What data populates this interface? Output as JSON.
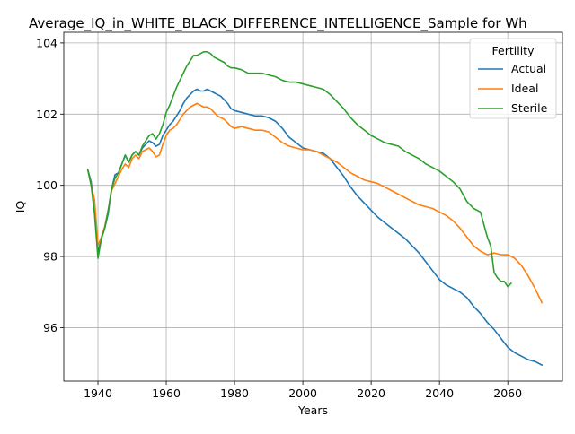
{
  "chart_data": {
    "type": "line",
    "title": "Average_IQ_in_WHITE_BLACK_DIFFERENCE_INTELLIGENCE_Sample for Wh",
    "xlabel": "Years",
    "ylabel": "IQ",
    "xlim": [
      1930,
      2076
    ],
    "ylim": [
      94.5,
      104.3
    ],
    "xticks": [
      1940,
      1960,
      1980,
      2000,
      2020,
      2040,
      2060
    ],
    "yticks": [
      96,
      98,
      100,
      102,
      104
    ],
    "grid": true,
    "legend": {
      "title": "Fertility",
      "placement": "top-right"
    },
    "series": [
      {
        "name": "Actual",
        "color": "#1f77b4",
        "points": [
          [
            1937,
            100.45
          ],
          [
            1938,
            100.1
          ],
          [
            1939,
            99.4
          ],
          [
            1940,
            98.1
          ],
          [
            1941,
            98.5
          ],
          [
            1942,
            98.8
          ],
          [
            1943,
            99.2
          ],
          [
            1944,
            99.9
          ],
          [
            1945,
            100.3
          ],
          [
            1946,
            100.35
          ],
          [
            1947,
            100.6
          ],
          [
            1948,
            100.85
          ],
          [
            1949,
            100.65
          ],
          [
            1950,
            100.85
          ],
          [
            1951,
            100.95
          ],
          [
            1952,
            100.85
          ],
          [
            1953,
            101.05
          ],
          [
            1954,
            101.15
          ],
          [
            1955,
            101.25
          ],
          [
            1956,
            101.2
          ],
          [
            1957,
            101.1
          ],
          [
            1958,
            101.15
          ],
          [
            1959,
            101.4
          ],
          [
            1960,
            101.55
          ],
          [
            1961,
            101.7
          ],
          [
            1962,
            101.8
          ],
          [
            1963,
            101.95
          ],
          [
            1964,
            102.1
          ],
          [
            1965,
            102.3
          ],
          [
            1966,
            102.45
          ],
          [
            1967,
            102.55
          ],
          [
            1968,
            102.65
          ],
          [
            1969,
            102.7
          ],
          [
            1970,
            102.65
          ],
          [
            1971,
            102.65
          ],
          [
            1972,
            102.7
          ],
          [
            1973,
            102.65
          ],
          [
            1974,
            102.6
          ],
          [
            1975,
            102.55
          ],
          [
            1976,
            102.5
          ],
          [
            1977,
            102.4
          ],
          [
            1978,
            102.3
          ],
          [
            1979,
            102.15
          ],
          [
            1980,
            102.1
          ],
          [
            1982,
            102.05
          ],
          [
            1984,
            102.0
          ],
          [
            1986,
            101.95
          ],
          [
            1988,
            101.95
          ],
          [
            1990,
            101.9
          ],
          [
            1992,
            101.8
          ],
          [
            1994,
            101.6
          ],
          [
            1996,
            101.35
          ],
          [
            1998,
            101.2
          ],
          [
            2000,
            101.05
          ],
          [
            2002,
            101.0
          ],
          [
            2004,
            100.95
          ],
          [
            2006,
            100.9
          ],
          [
            2008,
            100.75
          ],
          [
            2010,
            100.5
          ],
          [
            2012,
            100.25
          ],
          [
            2014,
            99.95
          ],
          [
            2016,
            99.7
          ],
          [
            2018,
            99.5
          ],
          [
            2020,
            99.3
          ],
          [
            2022,
            99.1
          ],
          [
            2024,
            98.95
          ],
          [
            2026,
            98.8
          ],
          [
            2028,
            98.65
          ],
          [
            2030,
            98.5
          ],
          [
            2032,
            98.3
          ],
          [
            2034,
            98.1
          ],
          [
            2036,
            97.85
          ],
          [
            2038,
            97.6
          ],
          [
            2040,
            97.35
          ],
          [
            2042,
            97.2
          ],
          [
            2044,
            97.1
          ],
          [
            2046,
            97.0
          ],
          [
            2048,
            96.85
          ],
          [
            2050,
            96.6
          ],
          [
            2052,
            96.4
          ],
          [
            2054,
            96.15
          ],
          [
            2056,
            95.95
          ],
          [
            2058,
            95.7
          ],
          [
            2060,
            95.45
          ],
          [
            2062,
            95.3
          ],
          [
            2064,
            95.2
          ],
          [
            2066,
            95.1
          ],
          [
            2068,
            95.05
          ],
          [
            2070,
            94.95
          ]
        ]
      },
      {
        "name": "Ideal",
        "color": "#ff7f0e",
        "points": [
          [
            1937,
            100.45
          ],
          [
            1938,
            100.0
          ],
          [
            1939,
            99.6
          ],
          [
            1940,
            98.3
          ],
          [
            1941,
            98.55
          ],
          [
            1942,
            98.85
          ],
          [
            1943,
            99.3
          ],
          [
            1944,
            99.85
          ],
          [
            1945,
            100.05
          ],
          [
            1946,
            100.25
          ],
          [
            1947,
            100.45
          ],
          [
            1948,
            100.6
          ],
          [
            1949,
            100.5
          ],
          [
            1950,
            100.75
          ],
          [
            1951,
            100.85
          ],
          [
            1952,
            100.75
          ],
          [
            1953,
            100.95
          ],
          [
            1954,
            101.0
          ],
          [
            1955,
            101.05
          ],
          [
            1956,
            100.95
          ],
          [
            1957,
            100.8
          ],
          [
            1958,
            100.85
          ],
          [
            1959,
            101.15
          ],
          [
            1960,
            101.4
          ],
          [
            1961,
            101.55
          ],
          [
            1962,
            101.6
          ],
          [
            1963,
            101.7
          ],
          [
            1964,
            101.85
          ],
          [
            1965,
            102.0
          ],
          [
            1966,
            102.1
          ],
          [
            1967,
            102.2
          ],
          [
            1968,
            102.25
          ],
          [
            1969,
            102.3
          ],
          [
            1970,
            102.25
          ],
          [
            1971,
            102.2
          ],
          [
            1972,
            102.2
          ],
          [
            1973,
            102.15
          ],
          [
            1974,
            102.05
          ],
          [
            1975,
            101.95
          ],
          [
            1976,
            101.9
          ],
          [
            1977,
            101.85
          ],
          [
            1978,
            101.75
          ],
          [
            1979,
            101.65
          ],
          [
            1980,
            101.6
          ],
          [
            1982,
            101.65
          ],
          [
            1984,
            101.6
          ],
          [
            1986,
            101.55
          ],
          [
            1988,
            101.55
          ],
          [
            1990,
            101.5
          ],
          [
            1992,
            101.35
          ],
          [
            1994,
            101.2
          ],
          [
            1996,
            101.1
          ],
          [
            1998,
            101.05
          ],
          [
            2000,
            101.0
          ],
          [
            2002,
            101.0
          ],
          [
            2004,
            100.95
          ],
          [
            2006,
            100.85
          ],
          [
            2008,
            100.75
          ],
          [
            2010,
            100.65
          ],
          [
            2012,
            100.5
          ],
          [
            2014,
            100.35
          ],
          [
            2016,
            100.25
          ],
          [
            2018,
            100.15
          ],
          [
            2020,
            100.1
          ],
          [
            2022,
            100.05
          ],
          [
            2024,
            99.95
          ],
          [
            2026,
            99.85
          ],
          [
            2028,
            99.75
          ],
          [
            2030,
            99.65
          ],
          [
            2032,
            99.55
          ],
          [
            2034,
            99.45
          ],
          [
            2036,
            99.4
          ],
          [
            2038,
            99.35
          ],
          [
            2040,
            99.25
          ],
          [
            2042,
            99.15
          ],
          [
            2044,
            99.0
          ],
          [
            2046,
            98.8
          ],
          [
            2048,
            98.55
          ],
          [
            2050,
            98.3
          ],
          [
            2052,
            98.15
          ],
          [
            2054,
            98.05
          ],
          [
            2056,
            98.1
          ],
          [
            2058,
            98.05
          ],
          [
            2060,
            98.05
          ],
          [
            2062,
            97.95
          ],
          [
            2064,
            97.75
          ],
          [
            2066,
            97.45
          ],
          [
            2068,
            97.1
          ],
          [
            2070,
            96.7
          ]
        ]
      },
      {
        "name": "Sterile",
        "color": "#2ca02c",
        "points": [
          [
            1937,
            100.45
          ],
          [
            1938,
            100.0
          ],
          [
            1939,
            99.2
          ],
          [
            1940,
            97.95
          ],
          [
            1941,
            98.5
          ],
          [
            1942,
            98.8
          ],
          [
            1943,
            99.3
          ],
          [
            1944,
            99.9
          ],
          [
            1945,
            100.2
          ],
          [
            1946,
            100.35
          ],
          [
            1947,
            100.6
          ],
          [
            1948,
            100.85
          ],
          [
            1949,
            100.65
          ],
          [
            1950,
            100.85
          ],
          [
            1951,
            100.95
          ],
          [
            1952,
            100.85
          ],
          [
            1953,
            101.1
          ],
          [
            1954,
            101.25
          ],
          [
            1955,
            101.4
          ],
          [
            1956,
            101.45
          ],
          [
            1957,
            101.3
          ],
          [
            1958,
            101.45
          ],
          [
            1959,
            101.7
          ],
          [
            1960,
            102.05
          ],
          [
            1961,
            102.25
          ],
          [
            1962,
            102.5
          ],
          [
            1963,
            102.75
          ],
          [
            1964,
            102.95
          ],
          [
            1965,
            103.15
          ],
          [
            1966,
            103.35
          ],
          [
            1967,
            103.5
          ],
          [
            1968,
            103.65
          ],
          [
            1969,
            103.65
          ],
          [
            1970,
            103.7
          ],
          [
            1971,
            103.75
          ],
          [
            1972,
            103.75
          ],
          [
            1973,
            103.7
          ],
          [
            1974,
            103.6
          ],
          [
            1975,
            103.55
          ],
          [
            1976,
            103.5
          ],
          [
            1977,
            103.45
          ],
          [
            1978,
            103.35
          ],
          [
            1979,
            103.3
          ],
          [
            1980,
            103.3
          ],
          [
            1982,
            103.25
          ],
          [
            1984,
            103.15
          ],
          [
            1986,
            103.15
          ],
          [
            1988,
            103.15
          ],
          [
            1990,
            103.1
          ],
          [
            1992,
            103.05
          ],
          [
            1994,
            102.95
          ],
          [
            1996,
            102.9
          ],
          [
            1998,
            102.9
          ],
          [
            2000,
            102.85
          ],
          [
            2002,
            102.8
          ],
          [
            2004,
            102.75
          ],
          [
            2006,
            102.7
          ],
          [
            2008,
            102.55
          ],
          [
            2010,
            102.35
          ],
          [
            2012,
            102.15
          ],
          [
            2014,
            101.9
          ],
          [
            2016,
            101.7
          ],
          [
            2018,
            101.55
          ],
          [
            2020,
            101.4
          ],
          [
            2022,
            101.3
          ],
          [
            2024,
            101.2
          ],
          [
            2026,
            101.15
          ],
          [
            2028,
            101.1
          ],
          [
            2030,
            100.95
          ],
          [
            2032,
            100.85
          ],
          [
            2034,
            100.75
          ],
          [
            2036,
            100.6
          ],
          [
            2038,
            100.5
          ],
          [
            2040,
            100.4
          ],
          [
            2042,
            100.25
          ],
          [
            2044,
            100.1
          ],
          [
            2046,
            99.9
          ],
          [
            2048,
            99.55
          ],
          [
            2050,
            99.35
          ],
          [
            2052,
            99.25
          ],
          [
            2053,
            98.9
          ],
          [
            2054,
            98.55
          ],
          [
            2055,
            98.3
          ],
          [
            2056,
            97.55
          ],
          [
            2057,
            97.4
          ],
          [
            2058,
            97.3
          ],
          [
            2059,
            97.3
          ],
          [
            2060,
            97.15
          ],
          [
            2061,
            97.25
          ]
        ]
      }
    ]
  }
}
